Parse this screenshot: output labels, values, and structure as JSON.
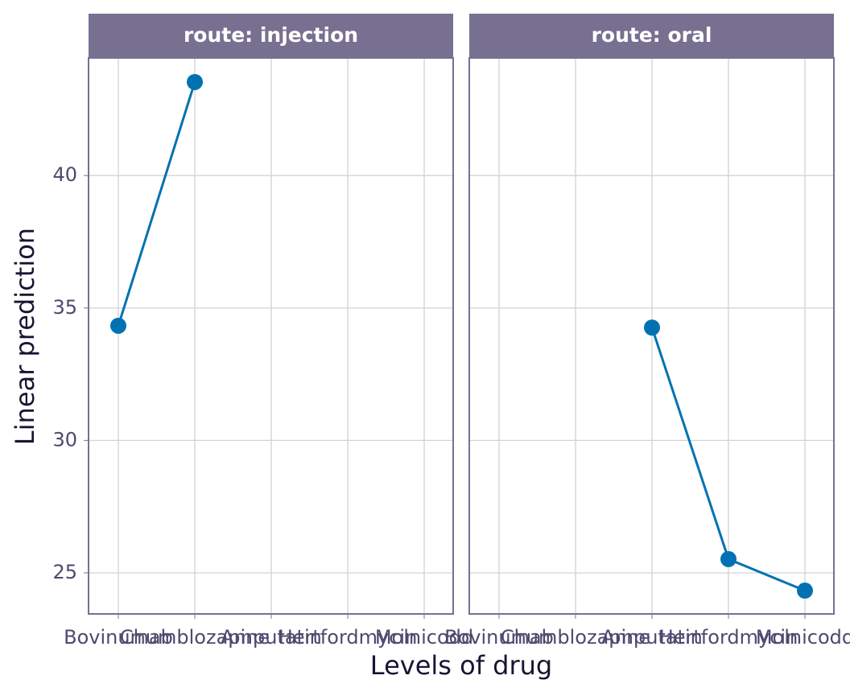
{
  "x_label": "Levels of drug",
  "y_label": "Linear prediction",
  "chart_data": [
    {
      "type": "line",
      "title": "route: injection",
      "categories": [
        "Bovinumab",
        "Chumblozapine",
        "Amputatin",
        "Hertfordmycin",
        "Molnicodd"
      ],
      "values": [
        34.33,
        43.53,
        null,
        null,
        null
      ],
      "color": "#0072b2",
      "ylim": [
        23.45,
        44.44
      ],
      "yticks": [
        25,
        30,
        35,
        40
      ],
      "grid": true
    },
    {
      "type": "line",
      "title": "route: oral",
      "categories": [
        "Bovinumab",
        "Chumblozapine",
        "Amputatin",
        "Hertfordmycin",
        "Molnicodd"
      ],
      "values": [
        null,
        null,
        34.26,
        25.52,
        24.33
      ],
      "color": "#0072b2",
      "ylim": [
        23.45,
        44.44
      ],
      "yticks": [
        25,
        30,
        35,
        40
      ],
      "grid": true
    }
  ]
}
